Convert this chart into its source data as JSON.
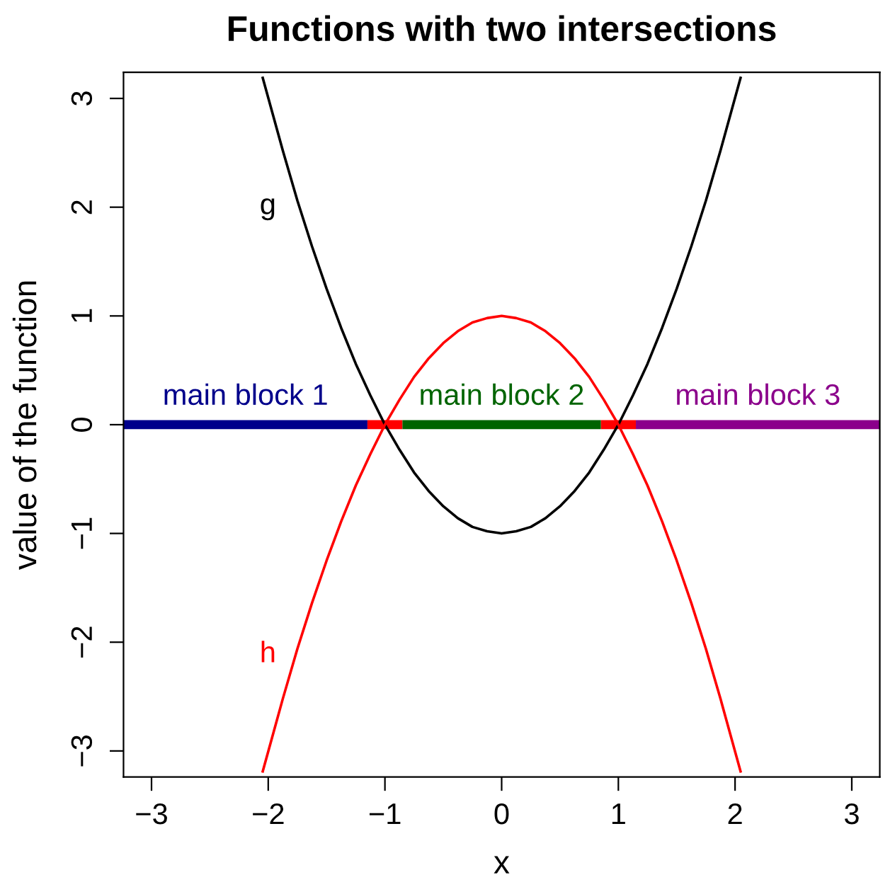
{
  "chart_data": {
    "type": "line",
    "title": "Functions with two intersections",
    "xlabel": "x",
    "ylabel": "value of the function",
    "series": [
      {
        "color": "#000000",
        "x": [
          -2.05,
          -1.875,
          -1.75,
          -1.625,
          -1.5,
          -1.375,
          -1.25,
          -1.125,
          -1,
          -0.875,
          -0.75,
          -0.625,
          -0.5,
          -0.375,
          -0.25,
          -0.125,
          0,
          0.125,
          0.25,
          0.375,
          0.5,
          0.625,
          0.75,
          0.875,
          1,
          1.125,
          1.25,
          1.375,
          1.5,
          1.625,
          1.75,
          1.875,
          2.05
        ],
        "values": [
          3.2,
          2.52,
          2.06,
          1.64,
          1.25,
          0.89,
          0.56,
          0.27,
          0,
          -0.23,
          -0.44,
          -0.61,
          -0.75,
          -0.86,
          -0.94,
          -0.98,
          -1,
          -0.98,
          -0.94,
          -0.86,
          -0.75,
          -0.61,
          -0.44,
          -0.23,
          0,
          0.27,
          0.56,
          0.89,
          1.25,
          1.64,
          2.06,
          2.52,
          3.2
        ]
      },
      {
        "color": "#ff0000",
        "x": [
          -2.05,
          -1.875,
          -1.75,
          -1.625,
          -1.5,
          -1.375,
          -1.25,
          -1.125,
          -1,
          -0.875,
          -0.75,
          -0.625,
          -0.5,
          -0.375,
          -0.25,
          -0.125,
          0,
          0.125,
          0.25,
          0.375,
          0.5,
          0.625,
          0.75,
          0.875,
          1,
          1.125,
          1.25,
          1.375,
          1.5,
          1.625,
          1.75,
          1.875,
          2.05
        ],
        "values": [
          -3.2,
          -2.52,
          -2.06,
          -1.64,
          -1.25,
          -0.89,
          -0.56,
          -0.27,
          0,
          0.23,
          0.44,
          0.61,
          0.75,
          0.86,
          0.94,
          0.98,
          1,
          0.98,
          0.94,
          0.86,
          0.75,
          0.61,
          0.44,
          0.23,
          0,
          -0.27,
          -0.56,
          -0.89,
          -1.25,
          -1.64,
          -2.06,
          -2.52,
          -3.2
        ]
      },
      {
        "name": "main block 1",
        "color": "#00008b",
        "x": [
          -3.24,
          -1.15
        ],
        "values": [
          0,
          0
        ]
      },
      {
        "color": "#ff0000",
        "x": [
          -1.15,
          -0.85,
          0,
          0.85,
          1.15
        ],
        "values": [
          0,
          0,
          null,
          0,
          0
        ]
      },
      {
        "name": "main block 2",
        "color": "#006400",
        "x": [
          -0.85,
          0.85
        ],
        "values": [
          0,
          0
        ]
      },
      {
        "name": "main block 3",
        "color": "#8b008b",
        "x": [
          1.15,
          3.24
        ],
        "values": [
          0,
          0
        ]
      }
    ],
    "annotations": [
      {
        "text": "g",
        "x": -1.75,
        "y": 2.06
      },
      {
        "text": "h",
        "x": -1.75,
        "y": -2.06
      }
    ],
    "xlim": [
      -3.24,
      3.24
    ],
    "ylim": [
      -3.24,
      3.24
    ],
    "xticks": [
      {
        "value": -3,
        "label": "−3"
      },
      {
        "value": -2,
        "label": "−2"
      },
      {
        "value": -1,
        "label": "−1"
      },
      0,
      1,
      2,
      3
    ],
    "yticks": [
      {
        "value": -3,
        "label": "−3"
      },
      {
        "value": -2,
        "label": "−2"
      },
      {
        "value": -1,
        "label": "−1"
      },
      0,
      1,
      2,
      3
    ],
    "grid": false,
    "legend": false,
    "marker": "none",
    "line_style": "solid"
  }
}
